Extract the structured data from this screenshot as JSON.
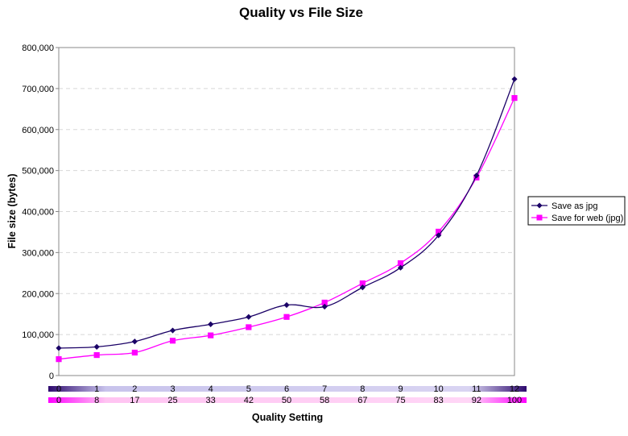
{
  "chart_data": {
    "type": "line",
    "title": "Quality vs File Size",
    "xlabel": "Quality Setting",
    "ylabel": "File size (bytes)",
    "ylim": [
      0,
      800000
    ],
    "y_ticks": [
      "0",
      "100,000",
      "200,000",
      "300,000",
      "400,000",
      "500,000",
      "600,000",
      "700,000",
      "800,000"
    ],
    "x_scale_jpg": [
      "0",
      "1",
      "2",
      "3",
      "4",
      "5",
      "6",
      "7",
      "8",
      "9",
      "10",
      "11",
      "12"
    ],
    "x_scale_web": [
      "0",
      "8",
      "17",
      "25",
      "33",
      "42",
      "50",
      "58",
      "67",
      "75",
      "83",
      "92",
      "100"
    ],
    "grid": "horizontal-dashed",
    "legend_position": "right",
    "series": [
      {
        "name": "Save as jpg",
        "color": "#1a0066",
        "marker": "diamond",
        "values": [
          67000,
          70000,
          83000,
          110000,
          125000,
          143000,
          172000,
          168000,
          215000,
          263000,
          342000,
          488000,
          723000
        ]
      },
      {
        "name": "Save for web (jpg)",
        "color": "#ff00ff",
        "marker": "square",
        "values": [
          40000,
          50000,
          56000,
          85000,
          98000,
          118000,
          143000,
          178000,
          225000,
          274000,
          351000,
          483000,
          677000
        ]
      }
    ],
    "scale_bar_colors": {
      "jpg": [
        "#2e0a6e",
        "#c8c3ec",
        "#d9d4f2",
        "#2e0a6e"
      ],
      "web": [
        "#ff00ff",
        "#ffc4f2",
        "#ffd6f6",
        "#ff00ff"
      ]
    }
  }
}
